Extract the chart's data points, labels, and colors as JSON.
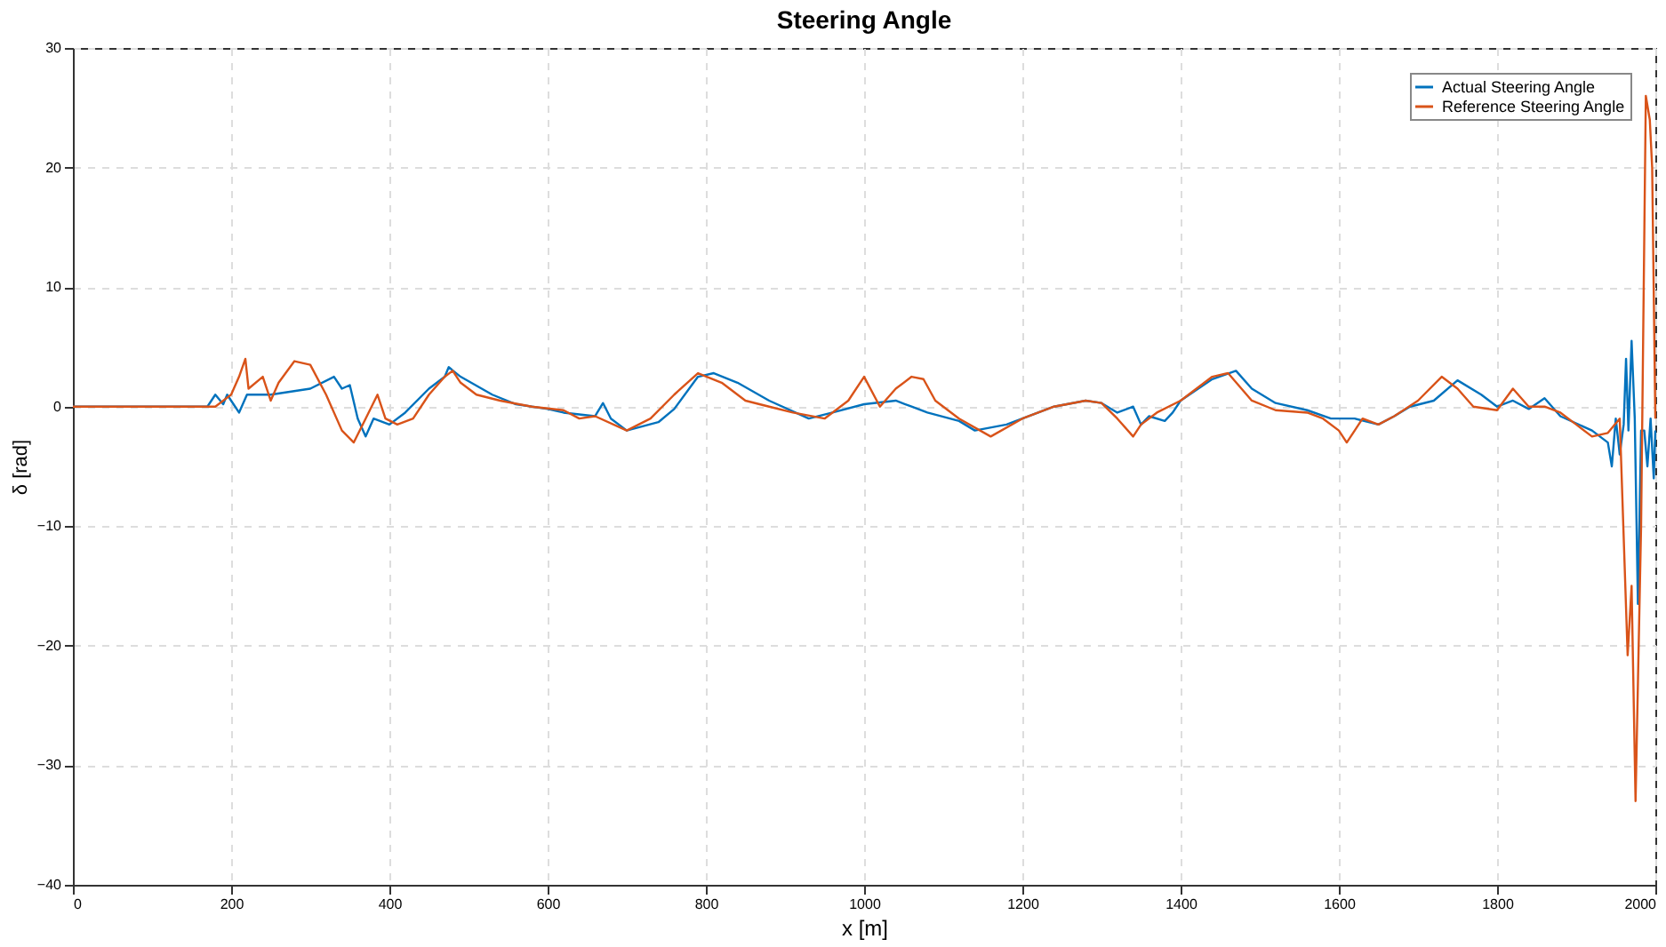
{
  "chart_data": {
    "type": "line",
    "title": "Steering Angle",
    "xlabel": "x [m]",
    "ylabel": "δ [rad]",
    "xlim": [
      0,
      2000
    ],
    "xticks": [
      0,
      200,
      400,
      600,
      800,
      1000,
      1200,
      1400,
      1600,
      1800,
      2000
    ],
    "ylim": [
      -40,
      30
    ],
    "yticks": [
      -40,
      -30,
      -20,
      -10,
      0,
      10,
      20,
      30
    ],
    "grid": true,
    "legend": "top right",
    "line_style": "solid",
    "marker": "none",
    "series": [
      {
        "name": "Actual Steering Angle",
        "color": "#0072bd",
        "x": [
          0,
          170,
          180,
          190,
          195,
          200,
          210,
          220,
          250,
          300,
          330,
          340,
          350,
          360,
          370,
          380,
          400,
          420,
          450,
          470,
          475,
          490,
          530,
          560,
          600,
          620,
          660,
          670,
          680,
          700,
          740,
          760,
          790,
          810,
          840,
          880,
          930,
          960,
          1000,
          1040,
          1060,
          1080,
          1120,
          1140,
          1180,
          1240,
          1280,
          1300,
          1320,
          1340,
          1350,
          1360,
          1380,
          1390,
          1400,
          1440,
          1470,
          1490,
          1520,
          1560,
          1590,
          1620,
          1650,
          1670,
          1690,
          1720,
          1750,
          1780,
          1800,
          1820,
          1840,
          1860,
          1880,
          1920,
          1940,
          1945,
          1950,
          1955,
          1960,
          1963,
          1966,
          1970,
          1974,
          1978,
          1982,
          1986,
          1990,
          1994,
          1998,
          2000
        ],
        "values": [
          0,
          0,
          1,
          0.2,
          1,
          0.5,
          -0.5,
          1,
          1,
          1.5,
          2.5,
          1.5,
          1.8,
          -1,
          -2.5,
          -1,
          -1.5,
          -0.5,
          1.5,
          2.5,
          3.3,
          2.5,
          1,
          0.2,
          -0.2,
          -0.5,
          -0.8,
          0.3,
          -1,
          -2,
          -1.3,
          -0.2,
          2.5,
          2.8,
          2,
          0.5,
          -1,
          -0.5,
          0.2,
          0.5,
          0,
          -0.5,
          -1.2,
          -2,
          -1.5,
          0,
          0.5,
          0.3,
          -0.5,
          0,
          -1.5,
          -0.8,
          -1.2,
          -0.5,
          0.5,
          2.3,
          3,
          1.5,
          0.3,
          -0.3,
          -1,
          -1,
          -1.5,
          -0.8,
          0,
          0.5,
          2.2,
          1,
          0,
          0.5,
          -0.2,
          0.7,
          -0.8,
          -2,
          -3,
          -5,
          -1,
          -4,
          -1.5,
          4,
          -2,
          5.5,
          -1,
          -16.5,
          -2,
          -2,
          -5,
          -1,
          -6,
          -2
        ]
      },
      {
        "name": "Reference Steering Angle",
        "color": "#d95319",
        "x": [
          0,
          160,
          180,
          200,
          210,
          218,
          222,
          240,
          250,
          260,
          280,
          300,
          320,
          340,
          355,
          370,
          385,
          395,
          410,
          430,
          450,
          470,
          480,
          490,
          510,
          540,
          580,
          620,
          640,
          660,
          700,
          730,
          760,
          790,
          820,
          850,
          880,
          910,
          950,
          980,
          1000,
          1020,
          1040,
          1060,
          1075,
          1090,
          1120,
          1160,
          1200,
          1240,
          1280,
          1300,
          1320,
          1340,
          1350,
          1370,
          1400,
          1440,
          1460,
          1490,
          1520,
          1560,
          1580,
          1600,
          1610,
          1630,
          1650,
          1670,
          1700,
          1730,
          1750,
          1770,
          1800,
          1820,
          1840,
          1860,
          1880,
          1900,
          1920,
          1940,
          1955,
          1965,
          1970,
          1975,
          1982,
          1988,
          1993,
          1996,
          2000
        ],
        "values": [
          0,
          0,
          0,
          1,
          2.5,
          4,
          1.5,
          2.5,
          0.5,
          2,
          3.8,
          3.5,
          1,
          -2,
          -3,
          -1,
          1,
          -1,
          -1.5,
          -1,
          1,
          2.5,
          3,
          2,
          1,
          0.5,
          0,
          -0.3,
          -1,
          -0.8,
          -2,
          -1,
          1,
          2.8,
          2,
          0.5,
          0,
          -0.5,
          -1,
          0.5,
          2.5,
          0,
          1.5,
          2.5,
          2.3,
          0.5,
          -1,
          -2.5,
          -1,
          0,
          0.5,
          0.3,
          -1,
          -2.5,
          -1.5,
          -0.5,
          0.5,
          2.5,
          2.8,
          0.5,
          -0.3,
          -0.5,
          -1,
          -2,
          -3,
          -1,
          -1.5,
          -0.8,
          0.5,
          2.5,
          1.5,
          0,
          -0.3,
          1.5,
          0,
          0,
          -0.5,
          -1.5,
          -2.5,
          -2.2,
          -1,
          -20.8,
          -15,
          -33,
          -10,
          26,
          24,
          20,
          -1
        ]
      }
    ]
  }
}
